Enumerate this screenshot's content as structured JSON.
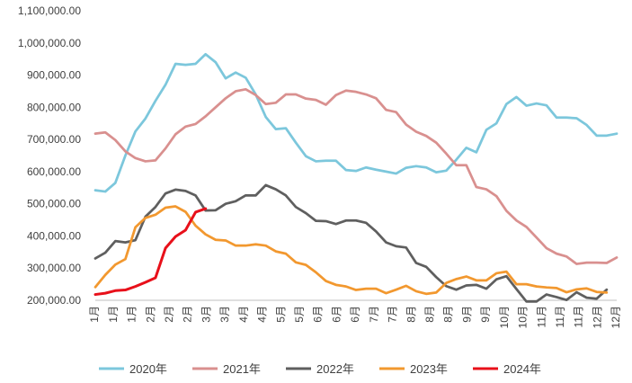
{
  "chart_data": {
    "type": "line",
    "title": "",
    "xlabel": "",
    "ylabel": "",
    "ylim": [
      200000,
      1100000
    ],
    "yticks": [
      "1,100,000.00",
      "1,000,000.00",
      "900,000.00",
      "800,000.00",
      "700,000.00",
      "600,000.00",
      "500,000.00",
      "400,000.00",
      "300,000.00",
      "200,000.00"
    ],
    "xticks": [
      "1月",
      "1月",
      "1月",
      "2月",
      "2月",
      "2月",
      "3月",
      "3月",
      "4月",
      "4月",
      "5月",
      "5月",
      "6月",
      "6月",
      "6月",
      "7月",
      "7月",
      "8月",
      "8月",
      "8月",
      "9月",
      "9月",
      "10月",
      "10月",
      "11月",
      "11月",
      "11月",
      "12月",
      "12月"
    ],
    "x_count": 53,
    "grid": false,
    "legend_position": "bottom",
    "series": [
      {
        "name": "2020年",
        "color": "#7cc7dc",
        "values": [
          542000,
          538000,
          565000,
          650000,
          725000,
          765000,
          820000,
          870000,
          935000,
          932000,
          935000,
          965000,
          940000,
          890000,
          908000,
          892000,
          840000,
          770000,
          732000,
          735000,
          690000,
          648000,
          632000,
          634000,
          634000,
          605000,
          602000,
          613000,
          606000,
          600000,
          594000,
          612000,
          617000,
          613000,
          598000,
          603000,
          637000,
          674000,
          660000,
          730000,
          750000,
          810000,
          832000,
          805000,
          812000,
          806000,
          768000,
          768000,
          766000,
          745000,
          712000,
          712000,
          718000
        ]
      },
      {
        "name": "2021年",
        "color": "#d9908f",
        "values": [
          718000,
          722000,
          698000,
          663000,
          642000,
          632000,
          635000,
          672000,
          716000,
          740000,
          748000,
          772000,
          800000,
          828000,
          850000,
          856000,
          838000,
          810000,
          814000,
          840000,
          840000,
          827000,
          823000,
          808000,
          838000,
          852000,
          848000,
          840000,
          828000,
          792000,
          785000,
          746000,
          724000,
          711000,
          690000,
          656000,
          620000,
          620000,
          552000,
          545000,
          524000,
          478000,
          448000,
          428000,
          395000,
          362000,
          345000,
          336000,
          313000,
          317000,
          317000,
          316000,
          333000
        ]
      },
      {
        "name": "2022年",
        "color": "#5f5f5f",
        "values": [
          330000,
          348000,
          384000,
          380000,
          387000,
          460000,
          490000,
          532000,
          544000,
          540000,
          526000,
          479000,
          480000,
          500000,
          508000,
          526000,
          526000,
          558000,
          545000,
          526000,
          490000,
          471000,
          447000,
          446000,
          437000,
          448000,
          448000,
          441000,
          414000,
          380000,
          368000,
          364000,
          316000,
          304000,
          272000,
          244000,
          233000,
          246000,
          248000,
          236000,
          265000,
          275000,
          235000,
          196000,
          196000,
          218000,
          210000,
          201000,
          225000,
          208000,
          205000,
          233000,
          null
        ]
      },
      {
        "name": "2023年",
        "color": "#f2982f",
        "values": [
          241000,
          279000,
          311000,
          328000,
          427000,
          456000,
          466000,
          488000,
          492000,
          475000,
          432000,
          405000,
          388000,
          386000,
          370000,
          370000,
          374000,
          370000,
          352000,
          345000,
          318000,
          310000,
          287000,
          260000,
          248000,
          243000,
          232000,
          236000,
          236000,
          222000,
          233000,
          245000,
          228000,
          220000,
          224000,
          254000,
          266000,
          274000,
          262000,
          262000,
          284000,
          289000,
          250000,
          250000,
          243000,
          240000,
          238000,
          225000,
          234000,
          237000,
          226000,
          224000,
          null
        ]
      },
      {
        "name": "2024年",
        "color": "#e8101a",
        "values": [
          218000,
          222000,
          230000,
          232000,
          243000,
          256000,
          270000,
          362000,
          398000,
          418000,
          474000,
          485000,
          null,
          null,
          null,
          null,
          null,
          null,
          null,
          null,
          null,
          null,
          null,
          null,
          null,
          null,
          null,
          null,
          null,
          null,
          null,
          null,
          null,
          null,
          null,
          null,
          null,
          null,
          null,
          null,
          null,
          null,
          null,
          null,
          null,
          null,
          null,
          null,
          null,
          null,
          null,
          null,
          null
        ]
      }
    ]
  }
}
